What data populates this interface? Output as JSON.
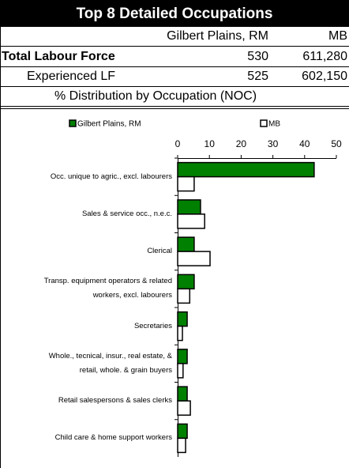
{
  "header": {
    "title": "Top 8 Detailed Occupations"
  },
  "table": {
    "columns": [
      "Gilbert Plains, RM",
      "MB"
    ],
    "rows": [
      {
        "label": "Total Labour Force",
        "values": [
          "530",
          "611,280"
        ]
      },
      {
        "label": "Experienced LF",
        "values": [
          "525",
          "602,150"
        ]
      }
    ]
  },
  "subtitle": "% Distribution by Occupation (NOC)",
  "chart_data": {
    "type": "bar",
    "orientation": "horizontal",
    "categories": [
      "Occ. unique to agric., excl. labourers",
      "Sales & service occ., n.e.c.",
      "Clerical",
      "Transp. equipment operators & related\nworkers, excl. labourers",
      "Secretaries",
      "Whole., tecnical, insur., real estate, &\nretail, whole. & grain buyers",
      "Retail salespersons & sales clerks",
      "Child care & home support workers"
    ],
    "series": [
      {
        "name": "Gilbert Plains, RM",
        "color": "#008000",
        "values": [
          43,
          7.2,
          5.2,
          5.2,
          3,
          3,
          3,
          3
        ]
      },
      {
        "name": "MB",
        "color": "#ffffff",
        "values": [
          5.2,
          8.5,
          10.2,
          3.8,
          1.5,
          1.7,
          4,
          2.5
        ]
      }
    ],
    "xlim": [
      0,
      50
    ],
    "xticks": [
      0,
      10,
      20,
      30,
      40,
      50
    ],
    "legend": "top"
  }
}
